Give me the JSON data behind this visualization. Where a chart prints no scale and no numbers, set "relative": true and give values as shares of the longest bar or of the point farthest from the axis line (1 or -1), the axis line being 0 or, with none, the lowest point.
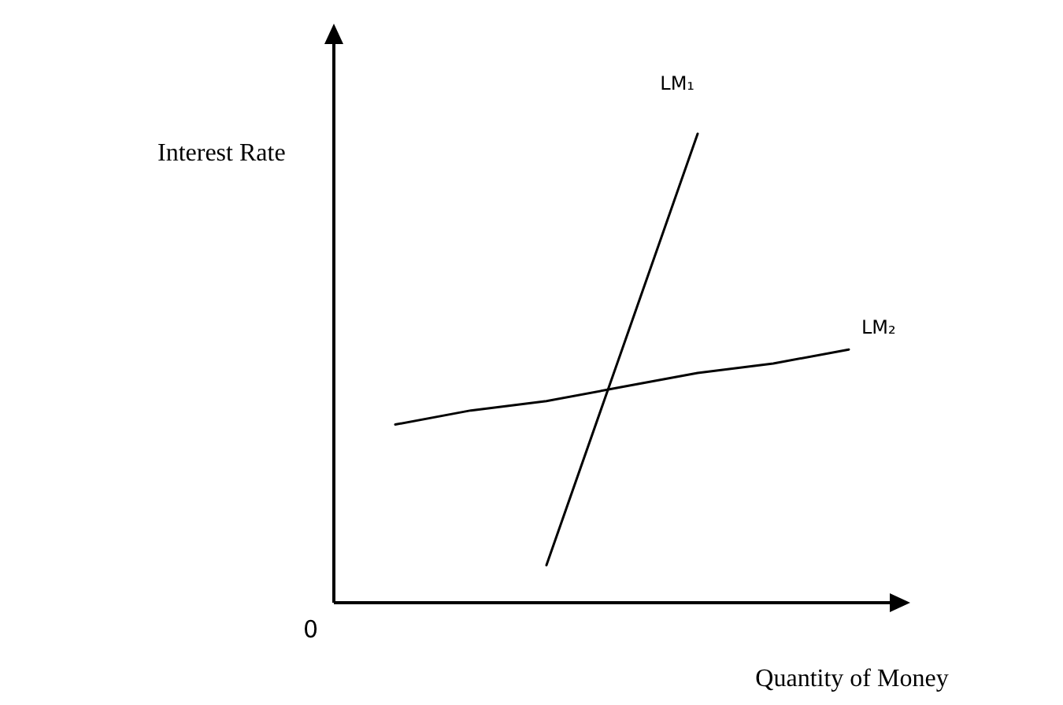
{
  "chart_data": {
    "type": "line",
    "relative": true,
    "xlabel": "Quantity of Money",
    "ylabel": "Interest Rate",
    "annotations": [
      "0"
    ],
    "marker": "none",
    "line_style": "solid",
    "categories": [
      null,
      null,
      null,
      null,
      null,
      null,
      null
    ],
    "series": [
      {
        "name": "LM₁",
        "color": "#000000",
        "values": [
          null,
          null,
          0.08,
          0.54,
          1,
          null,
          null
        ]
      },
      {
        "name": "LM₂",
        "color": "#000000",
        "values": [
          0.38,
          0.41,
          0.43,
          0.46,
          0.49,
          0.51,
          0.54
        ]
      }
    ]
  }
}
